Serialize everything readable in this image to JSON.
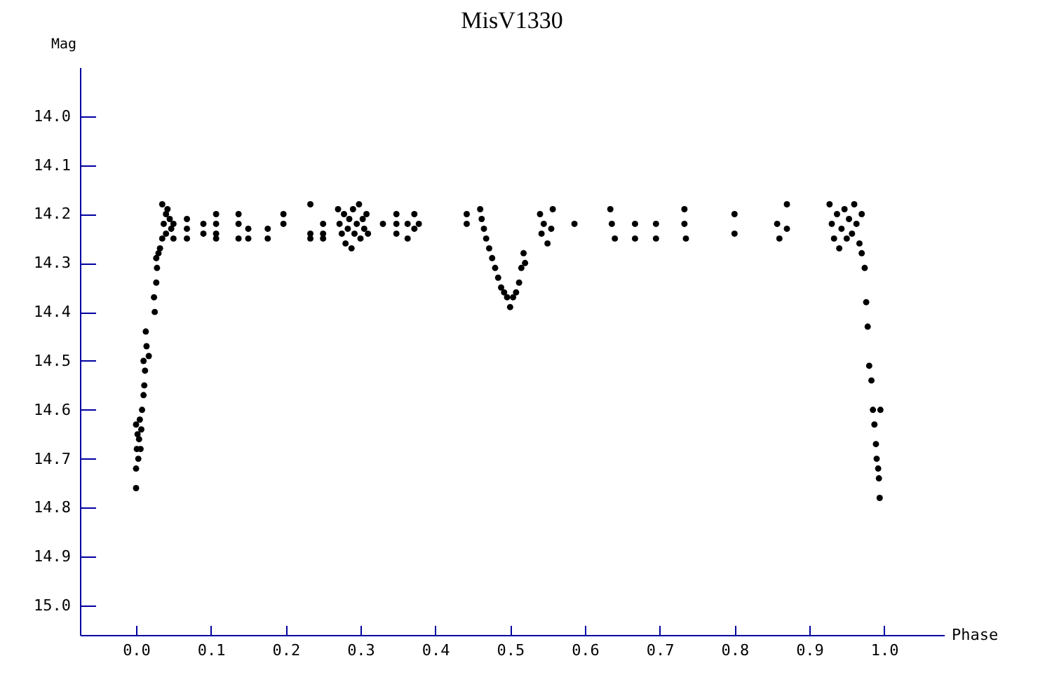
{
  "chart_data": {
    "type": "scatter",
    "title": "MisV1330",
    "xlabel": "Phase",
    "ylabel": "Mag",
    "marker": "circle",
    "xlim": [
      -0.075,
      1.08
    ],
    "ylim": [
      15.06,
      13.9
    ],
    "xticks": [
      {
        "value": 0,
        "label": "0.0"
      },
      0.1,
      0.2,
      0.3,
      0.4,
      0.5,
      0.6,
      0.7,
      0.8,
      0.9,
      {
        "value": 1,
        "label": "1.0"
      }
    ],
    "yticks": [
      {
        "value": 14,
        "label": "14.0"
      },
      14.1,
      14.2,
      14.3,
      14.4,
      14.5,
      14.6,
      14.7,
      14.8,
      14.9,
      {
        "value": 15,
        "label": "15.0"
      }
    ],
    "x": [
      0.0,
      0.0,
      0.001,
      0.002,
      0.0,
      0.003,
      0.004,
      0.005,
      0.006,
      0.007,
      0.008,
      0.01,
      0.011,
      0.012,
      0.01,
      0.014,
      0.013,
      0.017,
      0.025,
      0.024,
      0.027,
      0.028,
      0.027,
      0.03,
      0.032,
      0.035,
      0.035,
      0.037,
      0.04,
      0.04,
      0.042,
      0.045,
      0.047,
      0.05,
      0.05,
      0.068,
      0.068,
      0.068,
      0.09,
      0.09,
      0.107,
      0.107,
      0.107,
      0.107,
      0.137,
      0.137,
      0.137,
      0.15,
      0.15,
      0.176,
      0.176,
      0.197,
      0.197,
      0.233,
      0.233,
      0.233,
      0.25,
      0.25,
      0.25,
      0.27,
      0.272,
      0.275,
      0.278,
      0.28,
      0.283,
      0.285,
      0.288,
      0.29,
      0.292,
      0.295,
      0.298,
      0.3,
      0.303,
      0.305,
      0.308,
      0.31,
      0.33,
      0.348,
      0.348,
      0.348,
      0.363,
      0.363,
      0.372,
      0.372,
      0.378,
      0.442,
      0.442,
      0.46,
      0.462,
      0.465,
      0.468,
      0.472,
      0.476,
      0.48,
      0.484,
      0.488,
      0.492,
      0.496,
      0.5,
      0.504,
      0.508,
      0.512,
      0.515,
      0.518,
      0.52,
      0.54,
      0.542,
      0.545,
      0.55,
      0.555,
      0.557,
      0.586,
      0.634,
      0.636,
      0.64,
      0.667,
      0.667,
      0.695,
      0.695,
      0.733,
      0.733,
      0.735,
      0.8,
      0.8,
      0.857,
      0.86,
      0.87,
      0.87,
      0.927,
      0.93,
      0.933,
      0.937,
      0.94,
      0.943,
      0.947,
      0.95,
      0.953,
      0.957,
      0.96,
      0.963,
      0.967,
      0.97,
      0.97,
      0.974,
      0.976,
      0.978,
      0.98,
      0.983,
      0.985,
      0.987,
      0.989,
      0.99,
      0.992,
      0.993,
      0.994,
      0.995
    ],
    "series": [
      {
        "color": "#000000",
        "values": [
          14.76,
          14.72,
          14.68,
          14.65,
          14.63,
          14.7,
          14.66,
          14.62,
          14.68,
          14.64,
          14.6,
          14.57,
          14.55,
          14.52,
          14.5,
          14.47,
          14.44,
          14.49,
          14.4,
          14.37,
          14.34,
          14.31,
          14.29,
          14.28,
          14.27,
          14.25,
          14.18,
          14.22,
          14.24,
          14.2,
          14.19,
          14.21,
          14.23,
          14.25,
          14.22,
          14.21,
          14.23,
          14.25,
          14.22,
          14.24,
          14.2,
          14.22,
          14.24,
          14.25,
          14.2,
          14.22,
          14.25,
          14.23,
          14.25,
          14.23,
          14.25,
          14.2,
          14.22,
          14.18,
          14.24,
          14.25,
          14.22,
          14.24,
          14.25,
          14.19,
          14.22,
          14.24,
          14.2,
          14.26,
          14.23,
          14.21,
          14.27,
          14.19,
          14.24,
          14.22,
          14.18,
          14.25,
          14.21,
          14.23,
          14.2,
          14.24,
          14.22,
          14.2,
          14.22,
          14.24,
          14.22,
          14.25,
          14.2,
          14.23,
          14.22,
          14.2,
          14.22,
          14.19,
          14.21,
          14.23,
          14.25,
          14.27,
          14.29,
          14.31,
          14.33,
          14.35,
          14.36,
          14.37,
          14.39,
          14.37,
          14.36,
          14.34,
          14.31,
          14.28,
          14.3,
          14.2,
          14.24,
          14.22,
          14.26,
          14.23,
          14.19,
          14.22,
          14.19,
          14.22,
          14.25,
          14.22,
          14.25,
          14.22,
          14.25,
          14.19,
          14.22,
          14.25,
          14.2,
          14.24,
          14.22,
          14.25,
          14.18,
          14.23,
          14.18,
          14.22,
          14.25,
          14.2,
          14.27,
          14.23,
          14.19,
          14.25,
          14.21,
          14.24,
          14.18,
          14.22,
          14.26,
          14.2,
          14.28,
          14.31,
          14.38,
          14.43,
          14.51,
          14.54,
          14.6,
          14.63,
          14.67,
          14.7,
          14.72,
          14.74,
          14.78,
          14.6
        ]
      }
    ]
  }
}
